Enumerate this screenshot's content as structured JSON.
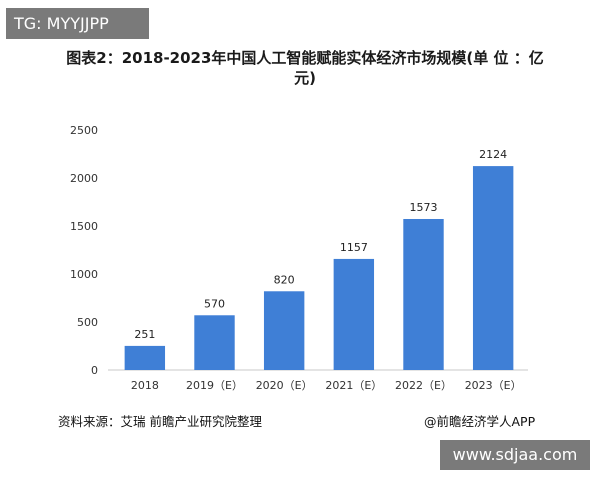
{
  "header_badge": "TG: MYYJJPP",
  "title": "图表2：2018-2023年中国人工智能赋能实体经济市场规模(单 位 ：亿元)",
  "source": "资料来源：艾瑞 前瞻产业研究院整理",
  "credit": "@前瞻经济学人APP",
  "site_badge": "www.sdjaa.com",
  "bar_color": "#3f7fd6",
  "chart_data": {
    "type": "bar",
    "title": "图表2：2018-2023年中国人工智能赋能实体经济市场规模(单 位 ：亿元)",
    "xlabel": "",
    "ylabel": "",
    "categories": [
      "2018",
      "2019（E）",
      "2020（E）",
      "2021（E）",
      "2022（E）",
      "2023（E）"
    ],
    "values": [
      251,
      570,
      820,
      1157,
      1573,
      2124
    ],
    "data_labels": [
      "251",
      "570",
      "820",
      "1157",
      "1573",
      "2124"
    ],
    "ylim": [
      0,
      2500
    ],
    "yticks": [
      0,
      500,
      1000,
      1500,
      2000,
      2500
    ],
    "grid": false,
    "legend": "none"
  }
}
